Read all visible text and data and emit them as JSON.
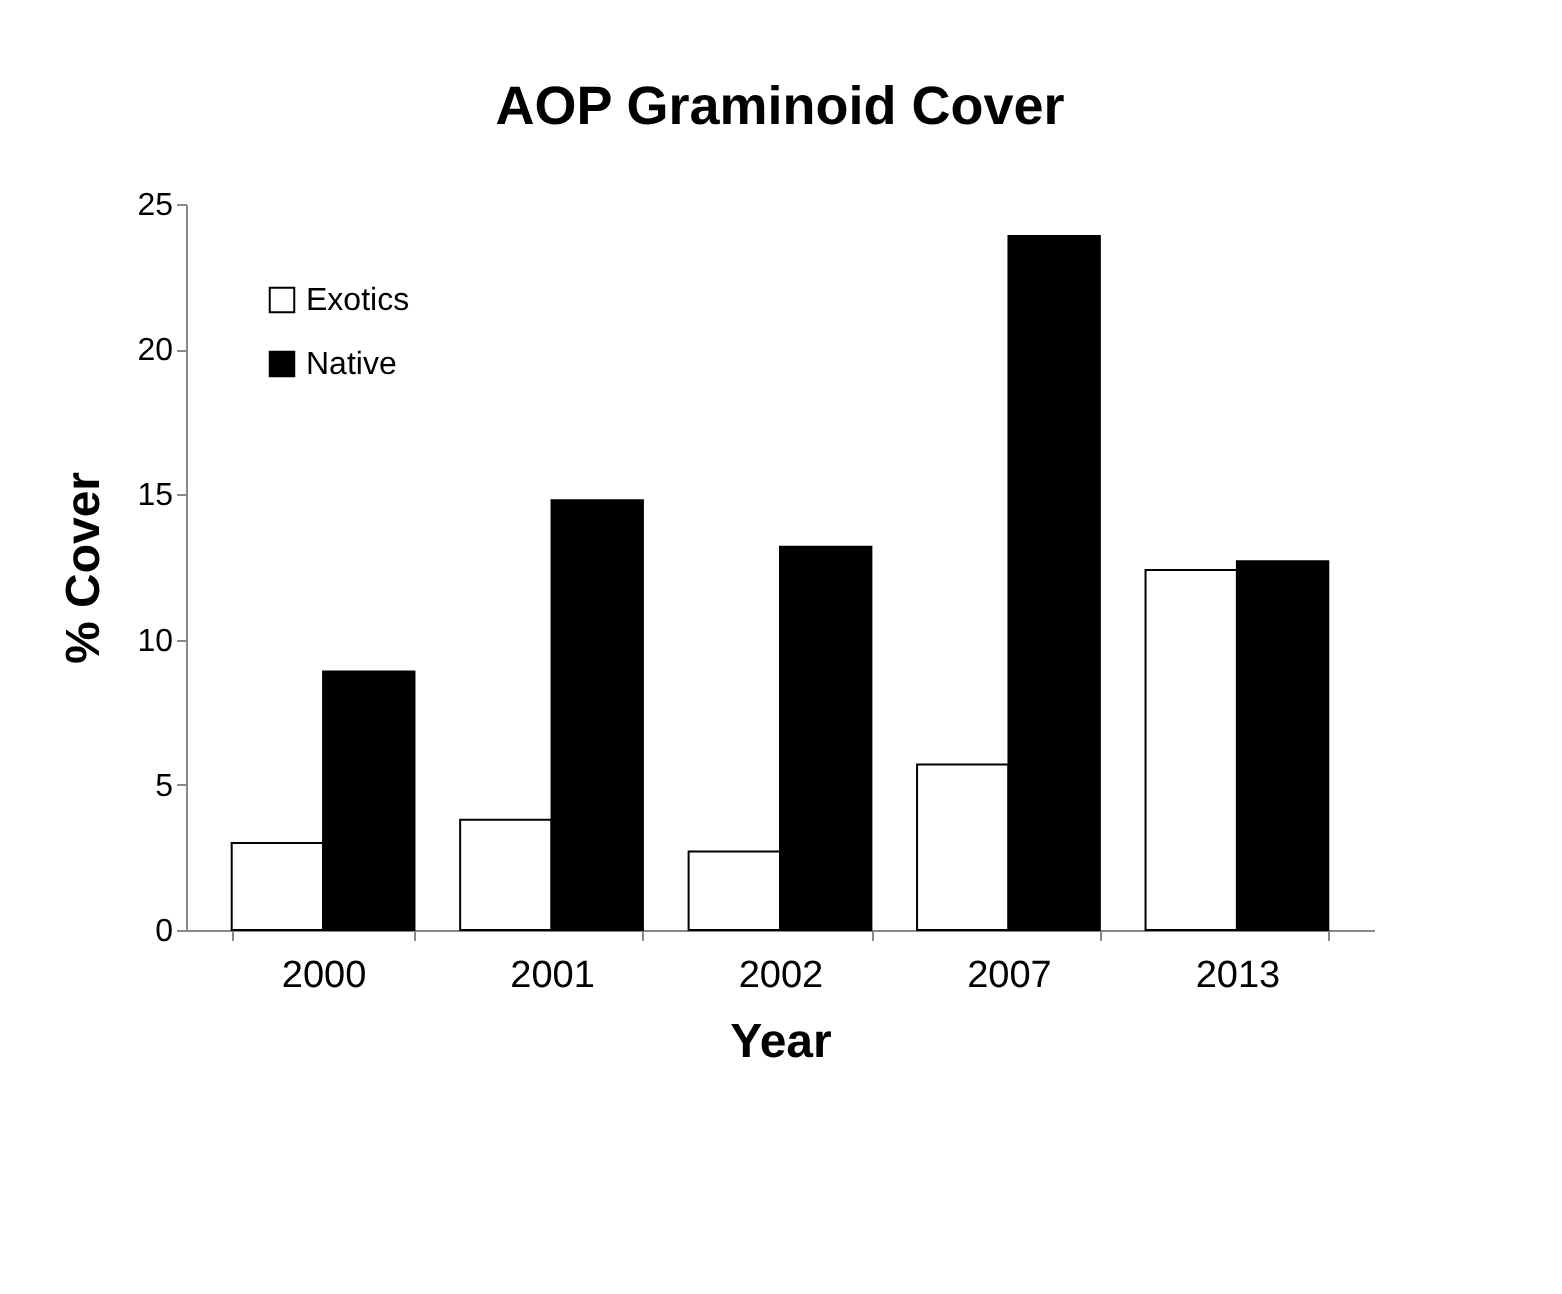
{
  "chart_data": {
    "type": "bar",
    "title": "AOP Graminoid Cover",
    "xlabel": "Year",
    "ylabel": "% Cover",
    "categories": [
      "2000",
      "2001",
      "2002",
      "2007",
      "2013"
    ],
    "series": [
      {
        "name": "Exotics",
        "color": "#ffffff",
        "values": [
          3.0,
          3.8,
          2.7,
          5.7,
          12.4
        ]
      },
      {
        "name": "Native",
        "color": "#000000",
        "values": [
          8.9,
          14.8,
          13.2,
          23.9,
          12.7
        ]
      }
    ],
    "ylim": [
      0,
      25
    ],
    "yticks": [
      0,
      5,
      10,
      15,
      20,
      25
    ],
    "grid": false,
    "legend": "top left"
  }
}
